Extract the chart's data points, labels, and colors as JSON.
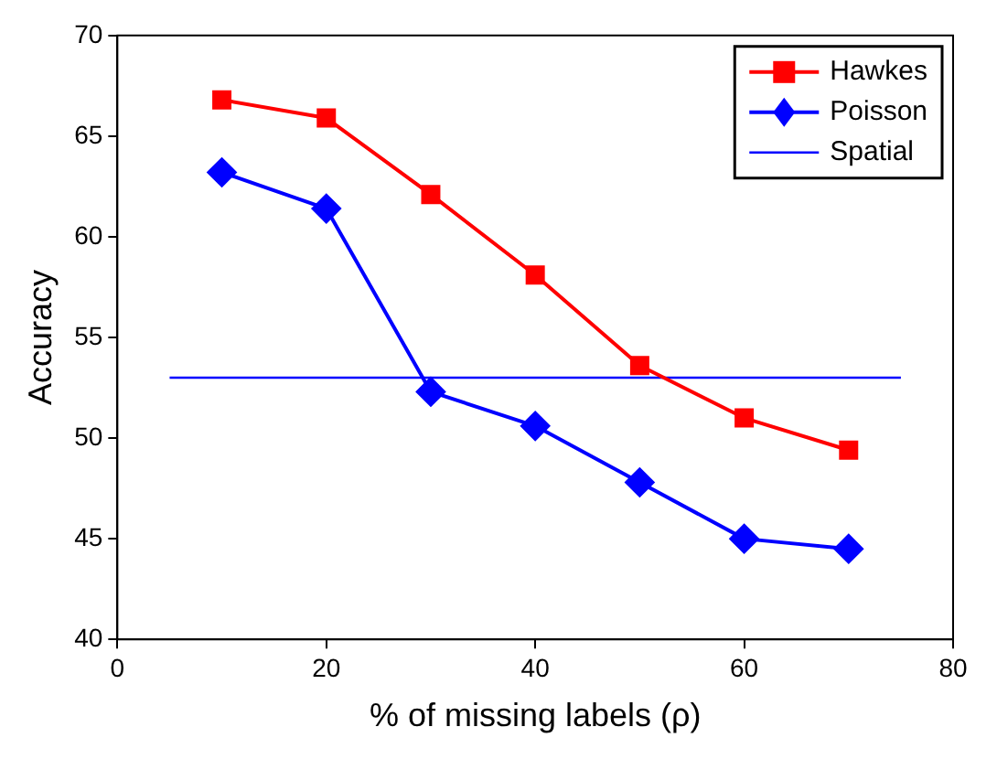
{
  "chart_data": {
    "type": "line",
    "xlabel": "% of missing labels (ρ)",
    "ylabel": "Accuracy",
    "x": [
      10,
      20,
      30,
      40,
      50,
      60,
      70
    ],
    "series": [
      {
        "name": "Hawkes",
        "color": "#ff0000",
        "marker": "square",
        "values": [
          66.8,
          65.9,
          62.1,
          58.1,
          53.6,
          51.0,
          49.4
        ]
      },
      {
        "name": "Poisson",
        "color": "#0000ff",
        "marker": "diamond",
        "values": [
          63.2,
          61.4,
          52.3,
          50.6,
          47.8,
          45.0,
          44.5
        ]
      },
      {
        "name": "Spatial",
        "color": "#0000ff",
        "marker": "none",
        "x": [
          5,
          75
        ],
        "values": [
          53.0,
          53.0
        ]
      }
    ],
    "xlim": [
      0,
      80
    ],
    "xticks": [
      0,
      20,
      40,
      60,
      80
    ],
    "ylim": [
      40,
      70
    ],
    "yticks": [
      40,
      45,
      50,
      55,
      60,
      65,
      70
    ],
    "grid": false,
    "legend": "top right",
    "line_style": "solid"
  }
}
